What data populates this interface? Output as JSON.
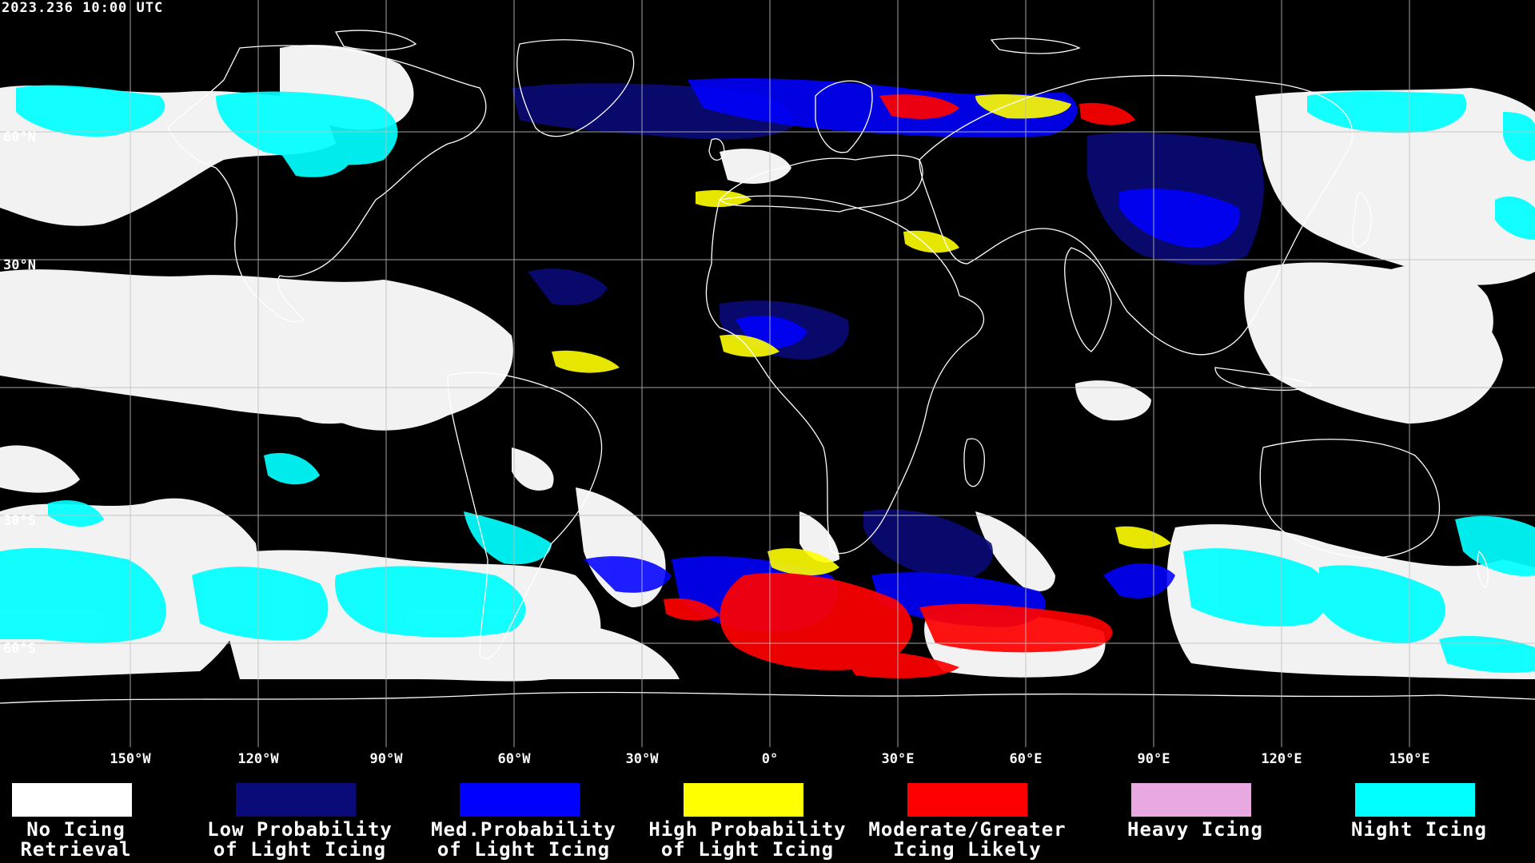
{
  "timestamp": "2023.236 10:00 UTC",
  "grid": {
    "longitude_labels": [
      "150°W",
      "120°W",
      "90°W",
      "60°W",
      "30°W",
      "0°",
      "30°E",
      "60°E",
      "90°E",
      "120°E",
      "150°E"
    ],
    "latitude_labels": [
      "60°N",
      "30°N",
      "30°S",
      "60°S"
    ]
  },
  "legend": [
    {
      "line1": "No Icing",
      "line2": "Retrieval",
      "color": "#ffffff"
    },
    {
      "line1": "Low Probability",
      "line2": "of Light Icing",
      "color": "#0a0a78"
    },
    {
      "line1": "Med.Probability",
      "line2": "of Light Icing",
      "color": "#0000ff"
    },
    {
      "line1": "High Probability",
      "line2": "of Light Icing",
      "color": "#ffff00"
    },
    {
      "line1": "Moderate/Greater",
      "line2": "Icing Likely",
      "color": "#ff0000"
    },
    {
      "line1": "Heavy Icing",
      "line2": "",
      "color": "#e8a8e0"
    },
    {
      "line1": "Night Icing",
      "line2": "",
      "color": "#00ffff"
    }
  ],
  "colors": {
    "background": "#000000",
    "gridline": "#bfbfbf",
    "coastline": "#ffffff"
  }
}
